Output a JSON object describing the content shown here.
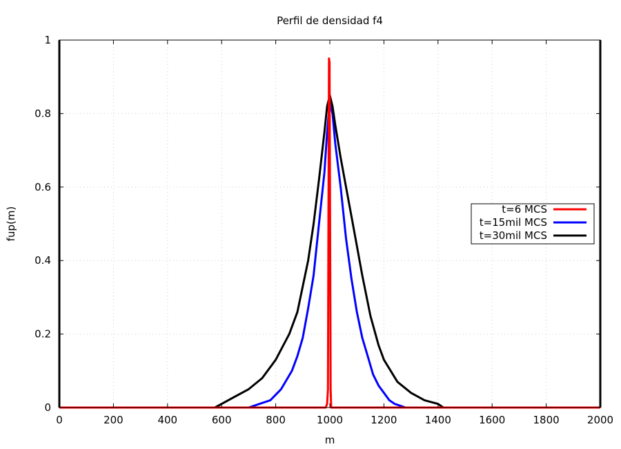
{
  "chart_data": {
    "type": "line",
    "title": "Perfil de densidad f4",
    "xlabel": "m",
    "ylabel": "fup(m)",
    "xlim": [
      0,
      2000
    ],
    "ylim": [
      0,
      1
    ],
    "xticks": [
      "0",
      "200",
      "400",
      "600",
      "800",
      "1000",
      "1200",
      "1400",
      "1600",
      "1800",
      "2000"
    ],
    "yticks": [
      "0",
      "0.2",
      "0.4",
      "0.6",
      "0.8",
      "1"
    ],
    "grid": true,
    "legend_position": "right",
    "series": [
      {
        "name": "t=6 MCS",
        "color": "#ff0000",
        "x": [
          0,
          985,
          990,
          993,
          995,
          997,
          999,
          1001,
          1003,
          1005,
          1010,
          2000
        ],
        "y": [
          0,
          0,
          0.01,
          0.05,
          0.5,
          0.95,
          0.94,
          0.5,
          0.05,
          0.0,
          0,
          0
        ]
      },
      {
        "name": "t=15mil MCS",
        "color": "#0000ff",
        "x": [
          0,
          700,
          740,
          780,
          820,
          860,
          880,
          900,
          920,
          940,
          960,
          980,
          990,
          1000,
          1010,
          1020,
          1040,
          1060,
          1080,
          1100,
          1120,
          1140,
          1160,
          1180,
          1200,
          1220,
          1240,
          1260,
          1280,
          1290,
          2000
        ],
        "y": [
          0,
          0,
          0.01,
          0.02,
          0.05,
          0.1,
          0.14,
          0.19,
          0.27,
          0.36,
          0.5,
          0.64,
          0.75,
          0.83,
          0.8,
          0.72,
          0.6,
          0.46,
          0.35,
          0.26,
          0.19,
          0.14,
          0.09,
          0.06,
          0.04,
          0.02,
          0.01,
          0.005,
          0.0,
          0,
          0
        ]
      },
      {
        "name": "t=30mil MCS",
        "color": "#000000",
        "x": [
          0,
          575,
          600,
          650,
          700,
          750,
          800,
          850,
          880,
          900,
          920,
          940,
          960,
          980,
          990,
          1000,
          1010,
          1020,
          1040,
          1060,
          1080,
          1100,
          1120,
          1150,
          1180,
          1200,
          1250,
          1300,
          1350,
          1400,
          1420,
          2000
        ],
        "y": [
          0,
          0,
          0.01,
          0.03,
          0.05,
          0.08,
          0.13,
          0.2,
          0.26,
          0.33,
          0.4,
          0.5,
          0.62,
          0.75,
          0.82,
          0.85,
          0.82,
          0.77,
          0.68,
          0.6,
          0.52,
          0.44,
          0.36,
          0.25,
          0.17,
          0.13,
          0.07,
          0.04,
          0.02,
          0.01,
          0,
          0
        ]
      }
    ]
  }
}
